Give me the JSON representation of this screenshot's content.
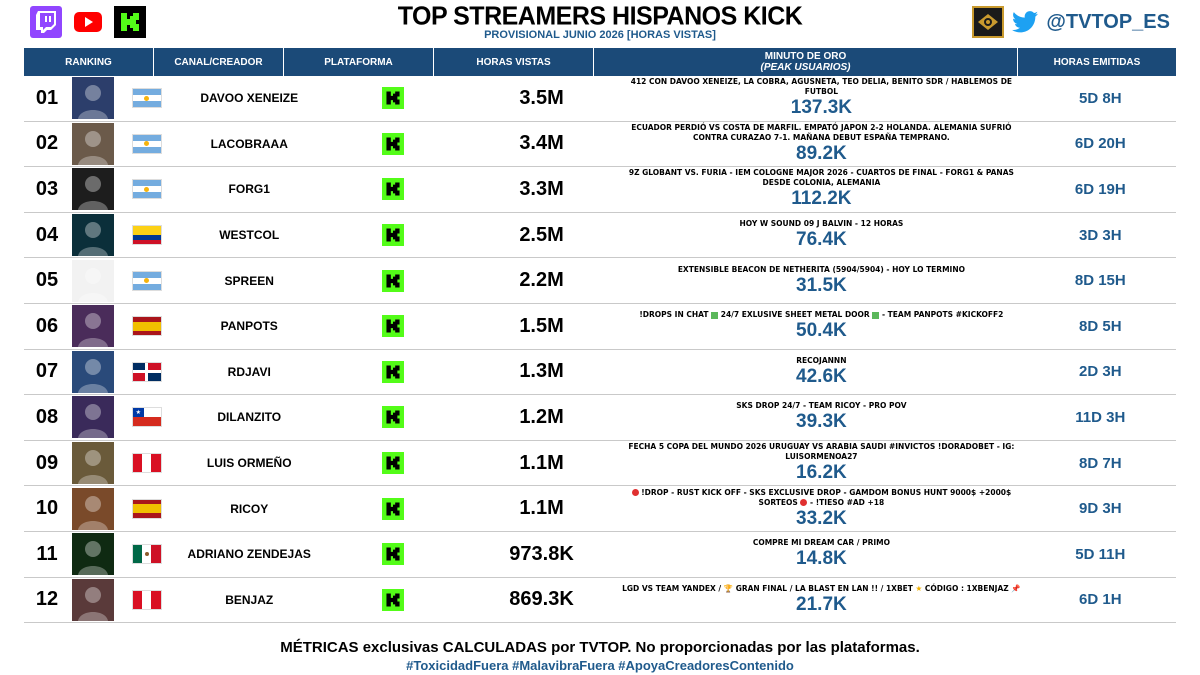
{
  "header": {
    "title": "TOP STREAMERS HISPANOS KICK",
    "subtitle": "PROVISIONAL JUNIO 2026 [HORAS VISTAS]",
    "handle": "@TVTOP_ES",
    "icons": [
      "twitch-icon",
      "youtube-icon",
      "kick-icon",
      "tvtop-logo",
      "twitter-icon"
    ]
  },
  "columns": {
    "ranking": "RANKING",
    "canal": "CANAL/CREADOR",
    "plataforma": "PLATAFORMA",
    "horas": "HORAS VISTAS",
    "minuto": "MINUTO DE ORO",
    "minuto_sub": "(PEAK USUARIOS)",
    "emitidas": "HORAS EMITIDAS"
  },
  "rows": [
    {
      "rank": "01",
      "name": "DAVOO XENEIZE",
      "country": "argentina",
      "views": "3.5M",
      "title": "412 CON DAVOO XENEIZE, LA COBRA, AGUSNETA, TEO DELIA, BENITO SDR / HABLEMOS DE FUTBOL",
      "peak": "137.3K",
      "emit": "5D 8H"
    },
    {
      "rank": "02",
      "name": "LACOBRAAA",
      "country": "argentina",
      "views": "3.4M",
      "title": "ECUADOR PERDIÓ VS COSTA DE MARFIL. EMPATÓ JAPON 2-2 HOLANDA. ALEMANIA SUFRIÓ CONTRA CURAZAO 7-1. MAÑANA DEBUT ESPAÑA TEMPRANO.",
      "peak": "89.2K",
      "emit": "6D 20H"
    },
    {
      "rank": "03",
      "name": "FORG1",
      "country": "argentina",
      "views": "3.3M",
      "title": "9Z GLOBANT VS. FURIA - IEM COLOGNE MAJOR 2026 - CUARTOS DE FINAL - FORG1 & PANAS DESDE COLONIA, ALEMANIA",
      "peak": "112.2K",
      "emit": "6D 19H"
    },
    {
      "rank": "04",
      "name": "WESTCOL",
      "country": "colombia",
      "views": "2.5M",
      "title": "HOY W SOUND 09 J BALVIN - 12 HORAS",
      "peak": "76.4K",
      "emit": "3D 3H"
    },
    {
      "rank": "05",
      "name": "SPREEN",
      "country": "argentina",
      "views": "2.2M",
      "title": "EXTENSIBLE BEACON DE NETHERITA (5904/5904) - HOY LO TERMINO",
      "peak": "31.5K",
      "emit": "8D 15H"
    },
    {
      "rank": "06",
      "name": "PANPOTS",
      "country": "spain",
      "views": "1.5M",
      "title_a": "!DROPS IN CHAT",
      "title_b": "24/7 EXLUSIVE SHEET METAL DOOR",
      "title_c": "- TEAM PANPOTS #KICKOFF2",
      "peak": "50.4K",
      "emit": "8D 5H"
    },
    {
      "rank": "07",
      "name": "RDJAVI",
      "country": "dominican",
      "views": "1.3M",
      "title": "RECOJANNN",
      "peak": "42.6K",
      "emit": "2D 3H"
    },
    {
      "rank": "08",
      "name": "DILANZITO",
      "country": "chile",
      "views": "1.2M",
      "title": "SKS DROP 24/7 - TEAM RICOY - PRO POV",
      "peak": "39.3K",
      "emit": "11D 3H"
    },
    {
      "rank": "09",
      "name": "LUIS ORMEÑO",
      "country": "peru",
      "views": "1.1M",
      "title": "FECHA 5 COPA DEL MUNDO 2026 URUGUAY VS ARABIA SAUDI #INVICTOS !DORADOBET - IG: LUISORMENOA27",
      "peak": "16.2K",
      "emit": "8D 7H"
    },
    {
      "rank": "10",
      "name": "RICOY",
      "country": "spain",
      "views": "1.1M",
      "title_a": "!DROP - RUST KICK OFF - SKS EXCLUSIVE DROP - GAMDOM BONUS HUNT 9000$ +2000$ SORTEOS",
      "title_b": "- !TIESO #AD +18",
      "peak": "33.2K",
      "emit": "9D 3H"
    },
    {
      "rank": "11",
      "name": "ADRIANO ZENDEJAS",
      "country": "mexico",
      "views": "973.8K",
      "title": "COMPRE MI DREAM CAR / PRIMO",
      "peak": "14.8K",
      "emit": "5D 11H"
    },
    {
      "rank": "12",
      "name": "BENJAZ",
      "country": "peru",
      "views": "869.3K",
      "title_a": "LGD VS TEAM YANDEX /",
      "title_b": "GRAN FINAL / LA BLAST EN LAN !! / 1XBET",
      "title_c": "CÓDIGO : 1XBENJAZ",
      "peak": "21.7K",
      "emit": "6D 1H"
    }
  ],
  "footer": {
    "line1": "MÉTRICAS exclusivas CALCULADAS por TVTOP. No proporcionadas por las plataformas.",
    "line2": "#ToxicidadFuera #MalavibraFuera #ApoyaCreadoresContenido"
  },
  "colors": {
    "header_blue": "#1b4a78",
    "accent_blue": "#1f5a8c",
    "kick_green": "#53fc18",
    "twitch_purple": "#9146ff"
  }
}
